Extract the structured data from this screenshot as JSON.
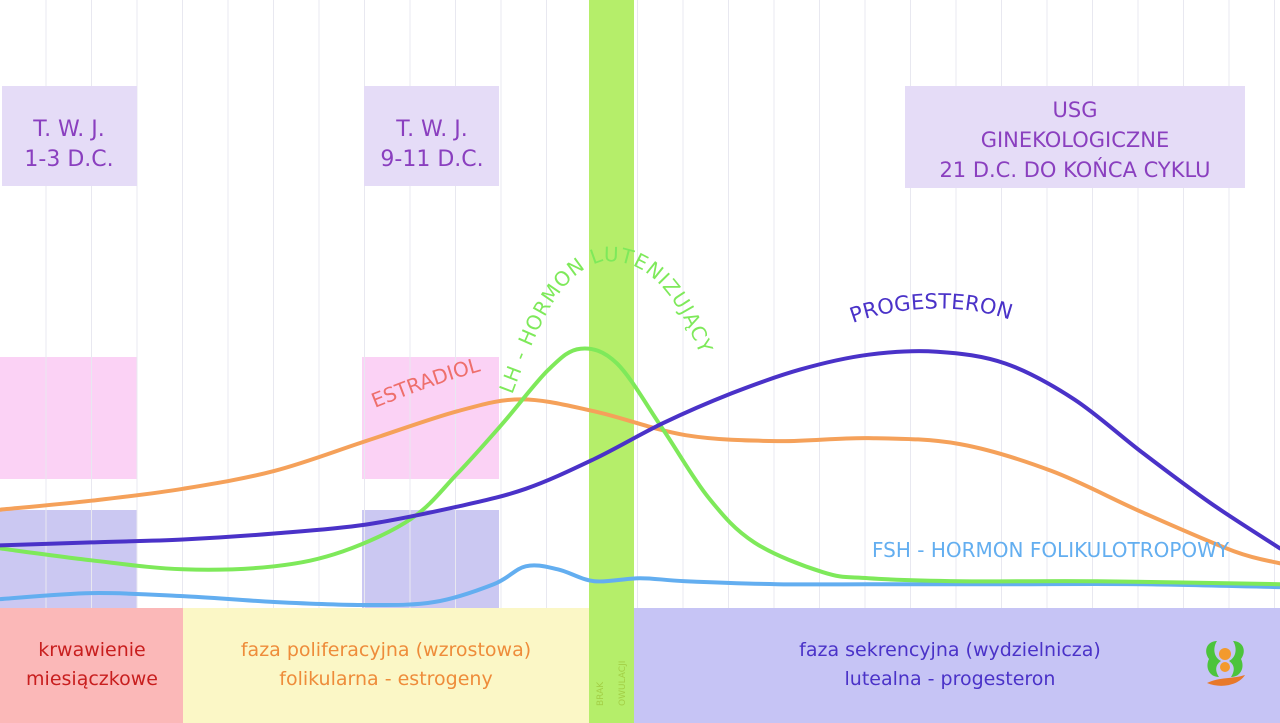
{
  "chart_data": {
    "type": "line",
    "x_range": [
      1,
      29
    ],
    "y_range": [
      0,
      100
    ],
    "grid": true,
    "series": [
      {
        "name": "ESTRADIOL",
        "color": "#f5a15a",
        "label_color": "#ee6f6c",
        "points": [
          [
            1,
            33
          ],
          [
            3,
            36
          ],
          [
            5,
            40
          ],
          [
            7,
            46
          ],
          [
            9,
            56
          ],
          [
            11,
            66
          ],
          [
            12.4,
            70
          ],
          [
            14,
            66
          ],
          [
            16,
            58
          ],
          [
            18,
            56
          ],
          [
            20,
            57
          ],
          [
            22,
            55
          ],
          [
            24,
            46
          ],
          [
            26,
            32
          ],
          [
            28,
            19
          ],
          [
            29,
            15
          ]
        ]
      },
      {
        "name": "LH - HORMON LUTENIZUJĄCY",
        "color": "#7ee95a",
        "label_color": "#7ee95a",
        "points": [
          [
            1,
            20
          ],
          [
            3,
            16
          ],
          [
            5,
            13
          ],
          [
            7,
            14
          ],
          [
            8.5,
            19
          ],
          [
            10,
            30
          ],
          [
            11,
            45
          ],
          [
            12,
            62
          ],
          [
            13,
            80
          ],
          [
            13.7,
            87
          ],
          [
            14.5,
            82
          ],
          [
            15.5,
            60
          ],
          [
            16.5,
            37
          ],
          [
            17.5,
            22
          ],
          [
            19,
            12
          ],
          [
            20,
            10
          ],
          [
            22,
            9
          ],
          [
            25,
            9
          ],
          [
            29,
            8
          ]
        ]
      },
      {
        "name": "PROGESTERON",
        "color": "#4a32c8",
        "label_color": "#4a32c8",
        "points": [
          [
            1,
            21
          ],
          [
            3,
            22
          ],
          [
            5,
            23
          ],
          [
            7,
            25
          ],
          [
            9,
            28
          ],
          [
            11,
            34
          ],
          [
            12.5,
            40
          ],
          [
            14,
            50
          ],
          [
            15.5,
            62
          ],
          [
            17,
            72
          ],
          [
            18.5,
            80
          ],
          [
            20,
            85
          ],
          [
            21.5,
            86
          ],
          [
            23,
            82
          ],
          [
            24.5,
            70
          ],
          [
            26,
            52
          ],
          [
            27.5,
            35
          ],
          [
            29,
            20
          ]
        ]
      },
      {
        "name": "FSH - HORMON FOLIKULOTROPOWY",
        "color": "#63aef0",
        "label_color": "#63aef0",
        "points": [
          [
            1,
            3
          ],
          [
            3,
            5
          ],
          [
            5,
            4
          ],
          [
            7,
            2
          ],
          [
            9,
            1
          ],
          [
            10.5,
            2
          ],
          [
            11.8,
            8
          ],
          [
            12.5,
            14
          ],
          [
            13.2,
            13
          ],
          [
            14,
            9
          ],
          [
            15,
            10
          ],
          [
            16,
            9
          ],
          [
            18,
            8
          ],
          [
            20,
            8
          ],
          [
            23,
            8
          ],
          [
            26,
            8
          ],
          [
            29,
            7
          ]
        ]
      }
    ],
    "annotations": [
      {
        "id": "twj1",
        "lines": [
          "T. W. J.",
          "1-3 D.C."
        ]
      },
      {
        "id": "twj2",
        "lines": [
          "T. W. J.",
          "9-11 D.C."
        ]
      },
      {
        "id": "usg",
        "lines": [
          "USG",
          "GINEKOLOGICZNE",
          "21 D.C. DO KOŃCA CYKLU"
        ]
      }
    ],
    "phases": [
      {
        "id": "menstruation",
        "lines": [
          "krwawienie",
          "miesiączkowe"
        ],
        "text_color": "#c81e1e",
        "bg": "#fbb8b8"
      },
      {
        "id": "proliferative",
        "lines": [
          "faza poliferacyjna (wzrostowa)",
          "folikularna - estrogeny"
        ],
        "text_color": "#ee8c3a",
        "bg": "#fbf7c6"
      },
      {
        "id": "ovulation",
        "lines": [
          "BRAK",
          "OWULACJI"
        ],
        "text_color": "#a3cf46",
        "bg": "#b5ee6a"
      },
      {
        "id": "secretory",
        "lines": [
          "faza sekrencyjna (wydzielnicza)",
          "lutealna - progesteron"
        ],
        "text_color": "#4a32c8",
        "bg": "#c6c4f5"
      }
    ],
    "colors": {
      "annotation_bg": "#e5dcf7",
      "annotation_text": "#8a3fbf",
      "estradiol_box": "#fbd2f5",
      "fsh_box": "#cbc8f2",
      "ovulation_band": "#b5ee6a",
      "grid": "#e8e8f0"
    },
    "logo_icon": "clinic-logo-icon"
  }
}
